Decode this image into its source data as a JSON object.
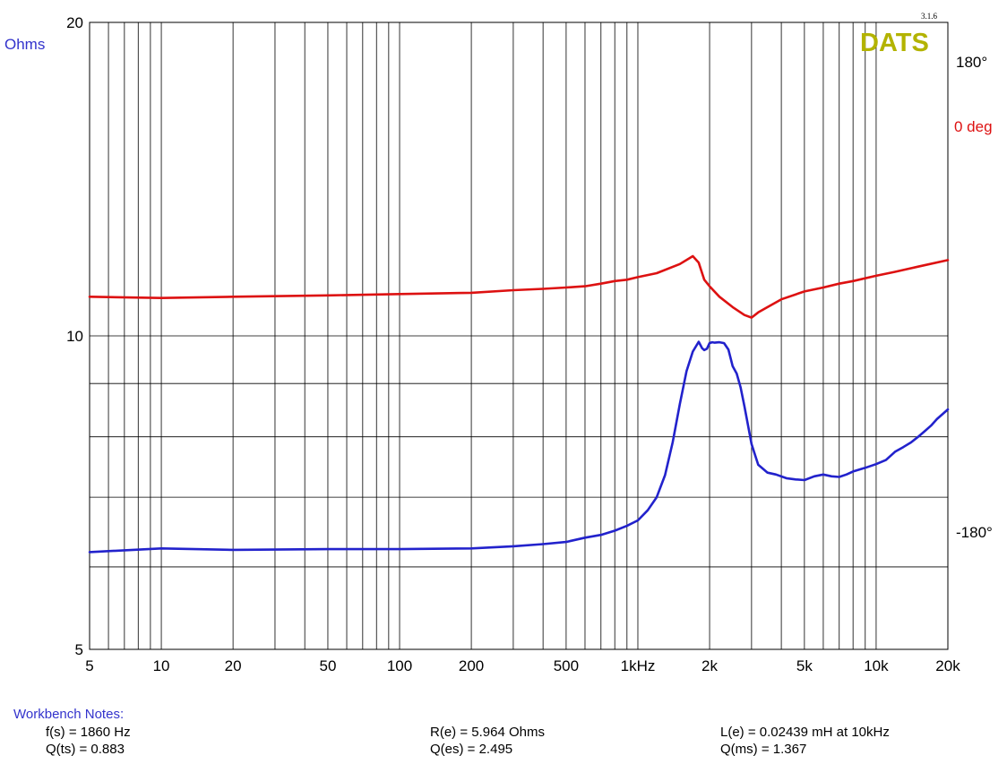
{
  "chart_data": {
    "type": "line",
    "x_scale": "log",
    "xlim": [
      5,
      20000
    ],
    "x_tick_labels": [
      {
        "value": 5,
        "label": "5"
      },
      {
        "value": 10,
        "label": "10"
      },
      {
        "value": 20,
        "label": "20"
      },
      {
        "value": 50,
        "label": "50"
      },
      {
        "value": 100,
        "label": "100"
      },
      {
        "value": 200,
        "label": "200"
      },
      {
        "value": 500,
        "label": "500"
      },
      {
        "value": 1000,
        "label": "1kHz"
      },
      {
        "value": 2000,
        "label": "2k"
      },
      {
        "value": 5000,
        "label": "5k"
      },
      {
        "value": 10000,
        "label": "10k"
      },
      {
        "value": 20000,
        "label": "20k"
      }
    ],
    "y_left": {
      "label": "Ohms",
      "scale": "log",
      "lim": [
        5,
        20
      ],
      "ticks": [
        {
          "value": 5,
          "label": "5"
        },
        {
          "value": 10,
          "label": "10"
        },
        {
          "value": 20,
          "label": "20"
        }
      ],
      "gridlines": [
        5,
        6,
        7,
        8,
        9,
        10,
        20
      ]
    },
    "y_right": {
      "label": "0 deg",
      "lim": [
        -270,
        210
      ],
      "ticks": [
        {
          "value": 180,
          "label": "180°"
        },
        {
          "value": -180,
          "label": "-180°"
        }
      ]
    },
    "brand": "DATS",
    "version": "3.1.6",
    "grid": true,
    "series": [
      {
        "axis": "left",
        "color": "#2222cc",
        "x": [
          5,
          10,
          20,
          50,
          100,
          200,
          300,
          400,
          500,
          600,
          700,
          800,
          900,
          1000,
          1100,
          1200,
          1300,
          1400,
          1500,
          1600,
          1700,
          1800,
          1860,
          1900,
          1950,
          2000,
          2050,
          2100,
          2200,
          2300,
          2400,
          2500,
          2600,
          2700,
          2800,
          3000,
          3200,
          3500,
          3800,
          4200,
          4600,
          5000,
          5500,
          6000,
          6500,
          7000,
          7500,
          8000,
          9000,
          10000,
          11000,
          12000,
          13000,
          14000,
          15000,
          16000,
          17000,
          18000,
          20000
        ],
        "y": [
          6.2,
          6.25,
          6.23,
          6.24,
          6.24,
          6.25,
          6.28,
          6.31,
          6.34,
          6.4,
          6.44,
          6.5,
          6.57,
          6.65,
          6.8,
          7.0,
          7.35,
          7.9,
          8.6,
          9.25,
          9.66,
          9.87,
          9.73,
          9.69,
          9.72,
          9.84,
          9.86,
          9.85,
          9.86,
          9.84,
          9.7,
          9.35,
          9.2,
          8.92,
          8.56,
          7.87,
          7.52,
          7.39,
          7.36,
          7.3,
          7.28,
          7.27,
          7.33,
          7.36,
          7.33,
          7.32,
          7.36,
          7.41,
          7.47,
          7.53,
          7.6,
          7.74,
          7.82,
          7.9,
          8.0,
          8.1,
          8.2,
          8.32,
          8.5
        ]
      },
      {
        "axis": "right",
        "color": "#dd1111",
        "x": [
          5,
          10,
          20,
          50,
          100,
          200,
          300,
          400,
          500,
          600,
          700,
          800,
          900,
          1000,
          1200,
          1500,
          1700,
          1800,
          1860,
          1900,
          2000,
          2200,
          2500,
          2800,
          3000,
          3200,
          3500,
          4000,
          5000,
          6000,
          7000,
          8000,
          10000,
          12000,
          15000,
          20000
        ],
        "y": [
          0,
          -1,
          0,
          1,
          2,
          3,
          5,
          6,
          7,
          8,
          10,
          12,
          13,
          15,
          18,
          25,
          31,
          26,
          18,
          13,
          8,
          0,
          -8,
          -14,
          -16,
          -12,
          -8,
          -2,
          4,
          7,
          10,
          12,
          16,
          19,
          23,
          28
        ]
      }
    ]
  },
  "notes": {
    "title": "Workbench Notes:",
    "fs": "f(s) = 1860 Hz",
    "qts": "Q(ts) = 0.883",
    "re": "R(e) = 5.964 Ohms",
    "qes": "Q(es) = 2.495",
    "le": "L(e) = 0.02439 mH at 10kHz",
    "qms": "Q(ms) = 1.367"
  },
  "colors": {
    "impedance": "#2222cc",
    "phase": "#dd1111",
    "brand": "#b3b300",
    "grid": "#000000",
    "left_label": "#3333cc",
    "phase_label": "#dd1111"
  }
}
